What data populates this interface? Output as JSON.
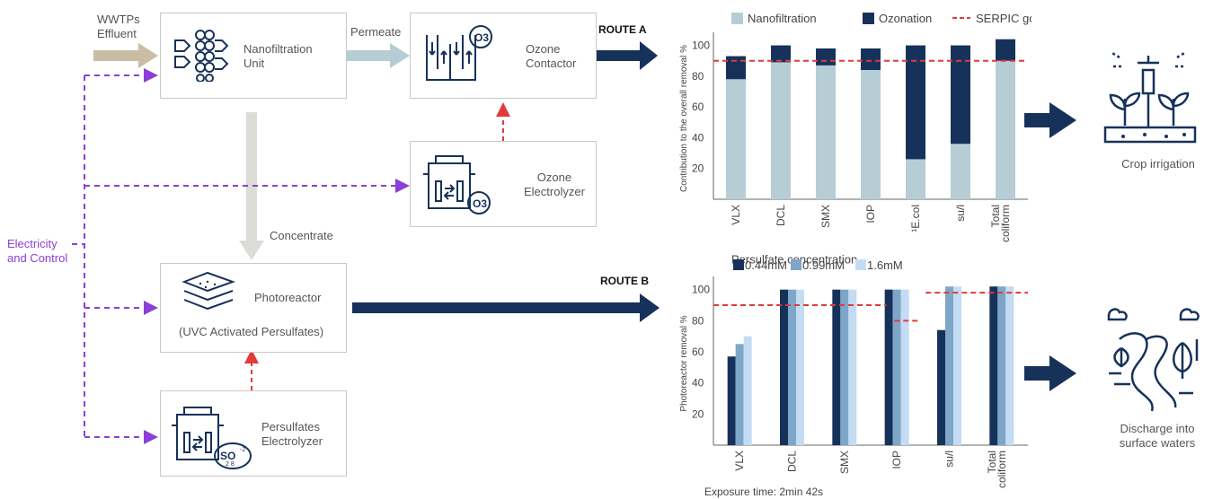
{
  "diagram": {
    "inputs": {
      "effluent": "WWTPs\nEffluent",
      "electricity": "Electricity\nand Control"
    },
    "flows": {
      "permeate": "Permeate",
      "concentrate": "Concentrate"
    },
    "units": {
      "nanofiltration": "Nanofiltration\nUnit",
      "ozone_contactor": "Ozone\nContactor",
      "ozone_electrolyzer": "Ozone\nElectrolyzer",
      "photoreactor": "Photoreactor",
      "photoreactor_sub": "(UVC Activated Persulfates)",
      "persulfates_electrolyzer": "Persulfates\nElectrolyzer"
    },
    "routes": {
      "a": "ROUTE A",
      "b": "ROUTE B"
    },
    "icon_labels": {
      "o3": "O3",
      "so": "SO",
      "so_sub": "2 8",
      "so_sup": "-2"
    },
    "outcomes": {
      "irrigation": "Crop irrigation",
      "discharge": "Discharge into\nsurface waters"
    }
  },
  "chart_data": [
    {
      "type": "bar",
      "stacked": true,
      "ylabel": "Contribution to the overall removal %",
      "ylim": [
        0,
        105
      ],
      "yticks": [
        20,
        40,
        60,
        80,
        100
      ],
      "categories": [
        "VLX",
        "DCL",
        "SMX",
        "IOP",
        "¹E.col",
        "su/l",
        "Total coliform"
      ],
      "series": [
        {
          "name": "Nanofiltration",
          "color": "#b7cdd5",
          "values": [
            78,
            89,
            87,
            84,
            26,
            36,
            90
          ]
        },
        {
          "name": "Ozonation",
          "color": "#17325a",
          "values": [
            15,
            11,
            11,
            14,
            74,
            64,
            14
          ]
        }
      ],
      "goal": {
        "name": "SERPIC goals",
        "color": "#e03a3a",
        "value": 90
      },
      "legend": "top"
    },
    {
      "type": "bar",
      "title": "Persulfate concentration",
      "ylabel": "Photoreactor removal %",
      "xlabel": "Exposure time: 2min 42s",
      "ylim": [
        0,
        105
      ],
      "yticks": [
        20,
        40,
        60,
        80,
        100
      ],
      "categories": [
        "VLX",
        "DCL",
        "SMX",
        "IOP",
        "su/l",
        "Total coliform"
      ],
      "series": [
        {
          "name": "0.44mM",
          "color": "#17325a",
          "values": [
            57,
            100,
            100,
            100,
            74,
            102
          ]
        },
        {
          "name": "0.99mM",
          "color": "#7ea6c8",
          "values": [
            65,
            100,
            100,
            100,
            102,
            102
          ]
        },
        {
          "name": "1.6mM",
          "color": "#c4dcf3",
          "values": [
            70,
            100,
            100,
            100,
            102,
            102
          ]
        }
      ],
      "goals": [
        {
          "from": 0,
          "to": 3,
          "value": 90
        },
        {
          "from": 3,
          "to": 4,
          "value": 80
        },
        {
          "from": 4,
          "to": 6,
          "value": 98
        }
      ],
      "goal_color": "#e03a3a",
      "legend": "top"
    }
  ]
}
